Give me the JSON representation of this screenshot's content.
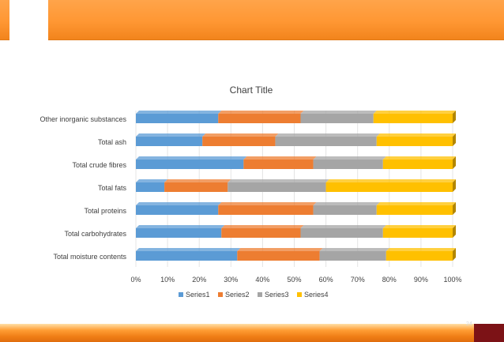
{
  "slide": {
    "page_number": "24"
  },
  "colors": {
    "banner": "#ff9933",
    "footer": "#f07e16",
    "footer_block": "#7c1216",
    "series": [
      "#5b9bd5",
      "#ed7d31",
      "#a5a5a5",
      "#ffc000"
    ]
  },
  "chart_data": {
    "type": "bar",
    "orientation": "horizontal",
    "stacking": "percent",
    "title": "Chart Title",
    "categories": [
      "Other inorganic substances",
      "Total ash",
      "Total crude fibres",
      "Total fats",
      "Total proteins",
      "Total carbohydrates",
      "Total moisture contents"
    ],
    "series": [
      {
        "name": "Series1",
        "values": [
          26,
          21,
          34,
          9,
          26,
          27,
          32
        ]
      },
      {
        "name": "Series2",
        "values": [
          26,
          23,
          22,
          20,
          30,
          25,
          26
        ]
      },
      {
        "name": "Series3",
        "values": [
          23,
          32,
          22,
          31,
          20,
          26,
          21
        ]
      },
      {
        "name": "Series4",
        "values": [
          25,
          24,
          22,
          40,
          24,
          22,
          21
        ]
      }
    ],
    "x_ticks": [
      "0%",
      "10%",
      "20%",
      "30%",
      "40%",
      "50%",
      "60%",
      "70%",
      "80%",
      "90%",
      "100%"
    ],
    "xlim": [
      0,
      100
    ],
    "grid": true,
    "legend": "bottom"
  }
}
